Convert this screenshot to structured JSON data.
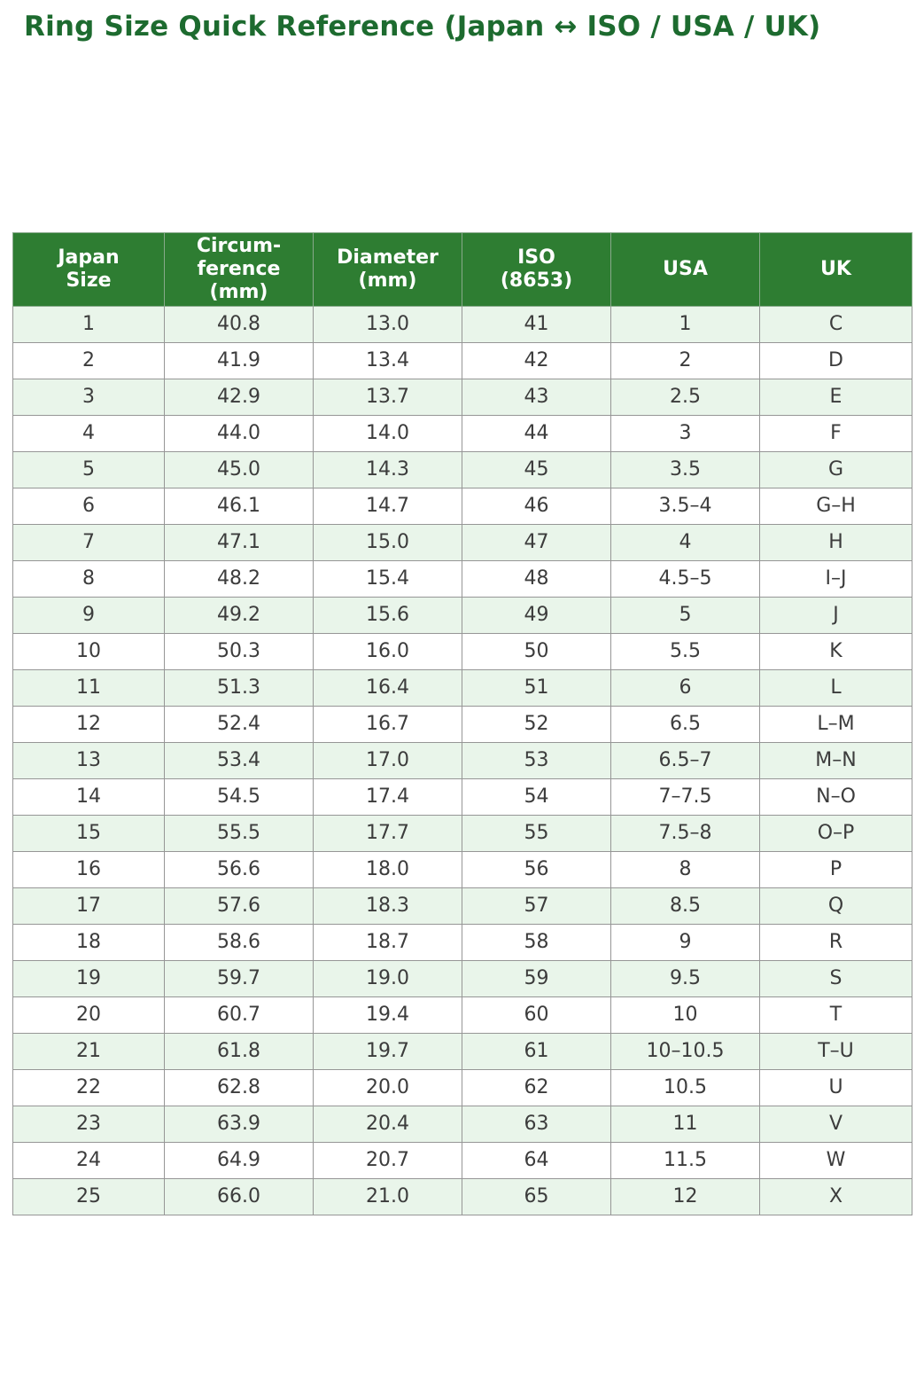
{
  "page": {
    "title": "Ring Size Quick Reference (Japan ↔ ISO / USA / UK)"
  },
  "colors": {
    "title_text": "#1d6b2f",
    "header_bg": "#2e7d32",
    "header_text": "#ffffff",
    "row_alt_bg": "#e9f5ea",
    "row_bg": "#ffffff",
    "body_text": "#3c3c3c",
    "grid_border": "#969696"
  },
  "table": {
    "headers": [
      "Japan\nSize",
      "Circum-\nference\n(mm)",
      "Diameter\n(mm)",
      "ISO\n(8653)",
      "USA",
      "UK"
    ],
    "rows": [
      [
        "1",
        "40.8",
        "13.0",
        "41",
        "1",
        "C"
      ],
      [
        "2",
        "41.9",
        "13.4",
        "42",
        "2",
        "D"
      ],
      [
        "3",
        "42.9",
        "13.7",
        "43",
        "2.5",
        "E"
      ],
      [
        "4",
        "44.0",
        "14.0",
        "44",
        "3",
        "F"
      ],
      [
        "5",
        "45.0",
        "14.3",
        "45",
        "3.5",
        "G"
      ],
      [
        "6",
        "46.1",
        "14.7",
        "46",
        "3.5–4",
        "G–H"
      ],
      [
        "7",
        "47.1",
        "15.0",
        "47",
        "4",
        "H"
      ],
      [
        "8",
        "48.2",
        "15.4",
        "48",
        "4.5–5",
        "I–J"
      ],
      [
        "9",
        "49.2",
        "15.6",
        "49",
        "5",
        "J"
      ],
      [
        "10",
        "50.3",
        "16.0",
        "50",
        "5.5",
        "K"
      ],
      [
        "11",
        "51.3",
        "16.4",
        "51",
        "6",
        "L"
      ],
      [
        "12",
        "52.4",
        "16.7",
        "52",
        "6.5",
        "L–M"
      ],
      [
        "13",
        "53.4",
        "17.0",
        "53",
        "6.5–7",
        "M–N"
      ],
      [
        "14",
        "54.5",
        "17.4",
        "54",
        "7–7.5",
        "N–O"
      ],
      [
        "15",
        "55.5",
        "17.7",
        "55",
        "7.5–8",
        "O–P"
      ],
      [
        "16",
        "56.6",
        "18.0",
        "56",
        "8",
        "P"
      ],
      [
        "17",
        "57.6",
        "18.3",
        "57",
        "8.5",
        "Q"
      ],
      [
        "18",
        "58.6",
        "18.7",
        "58",
        "9",
        "R"
      ],
      [
        "19",
        "59.7",
        "19.0",
        "59",
        "9.5",
        "S"
      ],
      [
        "20",
        "60.7",
        "19.4",
        "60",
        "10",
        "T"
      ],
      [
        "21",
        "61.8",
        "19.7",
        "61",
        "10–10.5",
        "T–U"
      ],
      [
        "22",
        "62.8",
        "20.0",
        "62",
        "10.5",
        "U"
      ],
      [
        "23",
        "63.9",
        "20.4",
        "63",
        "11",
        "V"
      ],
      [
        "24",
        "64.9",
        "20.7",
        "64",
        "11.5",
        "W"
      ],
      [
        "25",
        "66.0",
        "21.0",
        "65",
        "12",
        "X"
      ]
    ]
  },
  "chart_data": {
    "type": "table",
    "title": "Ring Size Quick Reference (Japan ↔ ISO / USA / UK)",
    "columns": [
      "Japan Size",
      "Circumference (mm)",
      "Diameter (mm)",
      "ISO (8653)",
      "USA",
      "UK"
    ],
    "rows": [
      [
        "1",
        "40.8",
        "13.0",
        "41",
        "1",
        "C"
      ],
      [
        "2",
        "41.9",
        "13.4",
        "42",
        "2",
        "D"
      ],
      [
        "3",
        "42.9",
        "13.7",
        "43",
        "2.5",
        "E"
      ],
      [
        "4",
        "44.0",
        "14.0",
        "44",
        "3",
        "F"
      ],
      [
        "5",
        "45.0",
        "14.3",
        "45",
        "3.5",
        "G"
      ],
      [
        "6",
        "46.1",
        "14.7",
        "46",
        "3.5–4",
        "G–H"
      ],
      [
        "7",
        "47.1",
        "15.0",
        "47",
        "4",
        "H"
      ],
      [
        "8",
        "48.2",
        "15.4",
        "48",
        "4.5–5",
        "I–J"
      ],
      [
        "9",
        "49.2",
        "15.6",
        "49",
        "5",
        "J"
      ],
      [
        "10",
        "50.3",
        "16.0",
        "50",
        "5.5",
        "K"
      ],
      [
        "11",
        "51.3",
        "16.4",
        "51",
        "6",
        "L"
      ],
      [
        "12",
        "52.4",
        "16.7",
        "52",
        "6.5",
        "L–M"
      ],
      [
        "13",
        "53.4",
        "17.0",
        "53",
        "6.5–7",
        "M–N"
      ],
      [
        "14",
        "54.5",
        "17.4",
        "54",
        "7–7.5",
        "N–O"
      ],
      [
        "15",
        "55.5",
        "17.7",
        "55",
        "7.5–8",
        "O–P"
      ],
      [
        "16",
        "56.6",
        "18.0",
        "56",
        "8",
        "P"
      ],
      [
        "17",
        "57.6",
        "18.3",
        "57",
        "8.5",
        "Q"
      ],
      [
        "18",
        "58.6",
        "18.7",
        "58",
        "9",
        "R"
      ],
      [
        "19",
        "59.7",
        "19.0",
        "59",
        "9.5",
        "S"
      ],
      [
        "20",
        "60.7",
        "19.4",
        "60",
        "10",
        "T"
      ],
      [
        "21",
        "61.8",
        "19.7",
        "61",
        "10–10.5",
        "T–U"
      ],
      [
        "22",
        "62.8",
        "20.0",
        "62",
        "10.5",
        "U"
      ],
      [
        "23",
        "63.9",
        "20.4",
        "63",
        "11",
        "V"
      ],
      [
        "24",
        "64.9",
        "20.7",
        "64",
        "11.5",
        "W"
      ],
      [
        "25",
        "66.0",
        "21.0",
        "65",
        "12",
        "X"
      ]
    ]
  }
}
